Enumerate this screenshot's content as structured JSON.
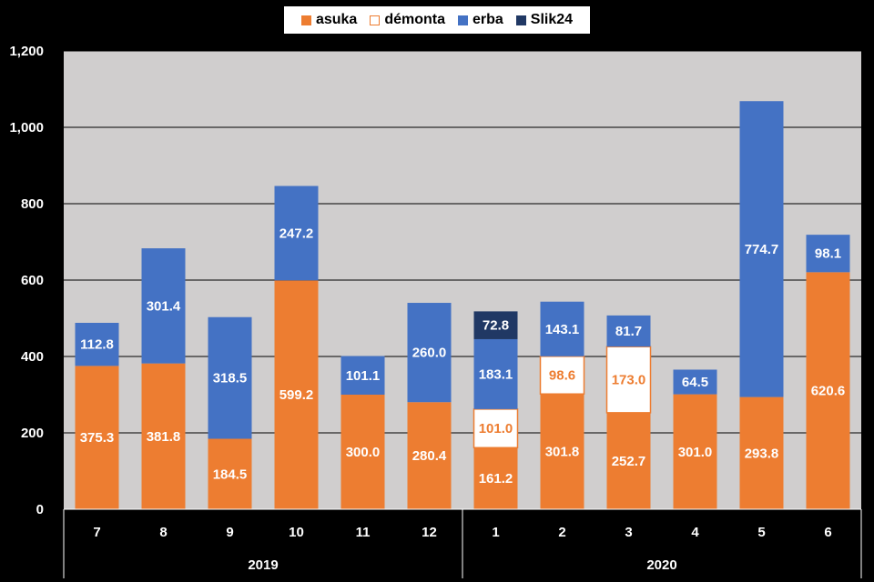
{
  "chart_data": {
    "type": "bar",
    "stacked": true,
    "categories": [
      "7",
      "8",
      "9",
      "10",
      "11",
      "12",
      "1",
      "2",
      "3",
      "4",
      "5",
      "6"
    ],
    "groups": [
      {
        "label": "2019",
        "categories": [
          "7",
          "8",
          "9",
          "10",
          "11",
          "12"
        ]
      },
      {
        "label": "2020",
        "categories": [
          "1",
          "2",
          "3",
          "4",
          "5",
          "6"
        ]
      }
    ],
    "series": [
      {
        "name": "asuka",
        "color": "#ED7D31",
        "label_color": "#FFFFFF",
        "values": [
          375.3,
          381.8,
          184.5,
          599.2,
          300.0,
          280.4,
          161.2,
          301.8,
          252.7,
          301.0,
          293.8,
          620.6
        ],
        "labels": [
          "375.3",
          "381.8",
          "184.5",
          "599.2",
          "300.0",
          "280.4",
          "161.2",
          "301.8",
          "252.7",
          "301.0",
          "293.8",
          "620.6"
        ]
      },
      {
        "name": "démonta",
        "color": "#FFFFFF",
        "border": "#ED7D31",
        "label_color": "#ED7D31",
        "values": [
          null,
          null,
          null,
          null,
          null,
          null,
          101.0,
          98.6,
          173.0,
          null,
          null,
          null
        ],
        "labels": [
          null,
          null,
          null,
          null,
          null,
          null,
          "101.0",
          "98.6",
          "173.0",
          null,
          null,
          null
        ]
      },
      {
        "name": "erba",
        "color": "#4472C4",
        "label_color": "#FFFFFF",
        "values": [
          112.8,
          301.4,
          318.5,
          247.2,
          101.1,
          260.0,
          183.1,
          143.1,
          81.7,
          64.5,
          774.7,
          98.1
        ],
        "labels": [
          "112.8",
          "301.4",
          "318.5",
          "247.2",
          "101.1",
          "260.0",
          "183.1",
          "143.1",
          "81.7",
          "64.5",
          "774.7",
          "98.1"
        ]
      },
      {
        "name": "Slik24",
        "color": "#203864",
        "label_color": "#FFFFFF",
        "values": [
          null,
          null,
          null,
          null,
          null,
          null,
          72.8,
          null,
          null,
          null,
          null,
          null
        ],
        "labels": [
          null,
          null,
          null,
          null,
          null,
          null,
          "72.8",
          null,
          null,
          null,
          null,
          null
        ]
      }
    ],
    "ylim": [
      0,
      1200
    ],
    "yticks": [
      0,
      200,
      400,
      600,
      800,
      1000,
      1200
    ],
    "ytick_labels": [
      "0",
      "200",
      "400",
      "600",
      "800",
      "1,000",
      "1,200"
    ],
    "grid": true,
    "legend_position": "top-center",
    "title": "",
    "xlabel": "",
    "ylabel": "",
    "plot_background": "#D0CECE"
  }
}
